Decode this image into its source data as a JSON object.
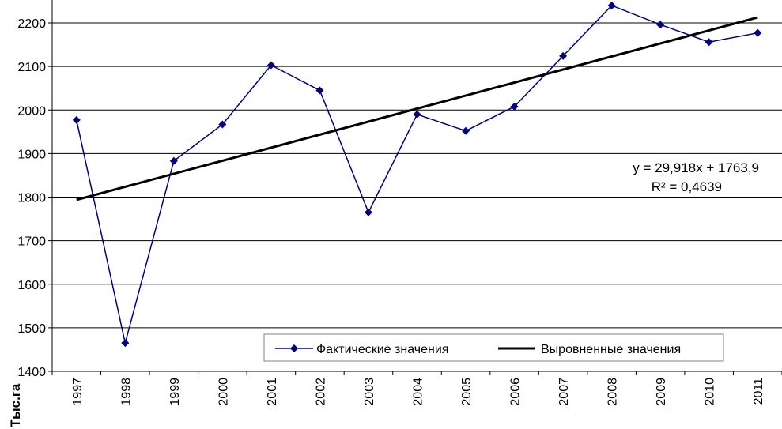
{
  "chart_data": {
    "type": "line",
    "ylabel": "Тыс.га",
    "ylim": [
      1400,
      2200
    ],
    "yticks": [
      "1400",
      "1500",
      "1600",
      "1700",
      "1800",
      "1900",
      "2000",
      "2100",
      "2200"
    ],
    "grid": true,
    "categories": [
      "1997",
      "1998",
      "1999",
      "2000",
      "2001",
      "2002",
      "2003",
      "2004",
      "2005",
      "2006",
      "2007",
      "2008",
      "2009",
      "2010",
      "2011"
    ],
    "series": [
      {
        "name": "Фактические значения",
        "color": "#000080",
        "marker": "diamond",
        "values": [
          1977,
          1465,
          1883,
          1967,
          2103,
          2045,
          1765,
          1990,
          1952,
          2008,
          2124,
          2240,
          2196,
          2156,
          2177
        ]
      },
      {
        "name": "Выровненные значения",
        "color": "#000000",
        "type": "trendline",
        "slope": 29.918,
        "intercept": 1763.9
      }
    ],
    "annotation": {
      "equation": "y = 29,918x + 1763,9",
      "r2": "R² = 0,4639"
    },
    "legend_position": "bottom-right"
  }
}
